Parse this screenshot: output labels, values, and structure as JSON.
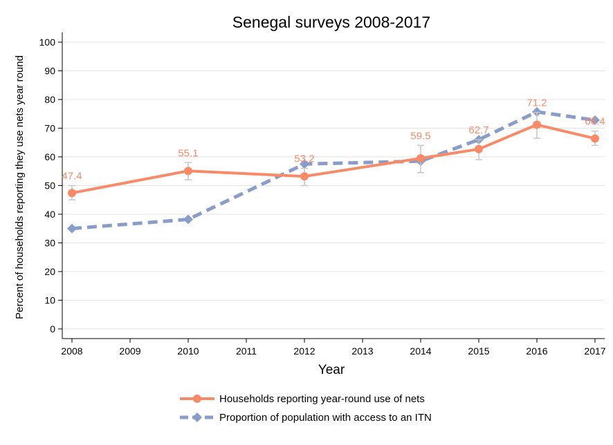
{
  "chart_data": {
    "type": "line",
    "title": "Senegal surveys 2008-2017",
    "xlabel": "Year",
    "ylabel": "Percent of households reporting they use nets year round",
    "x_ticks": [
      2008,
      2009,
      2010,
      2011,
      2012,
      2013,
      2014,
      2015,
      2016,
      2017
    ],
    "xlim": [
      2008,
      2017
    ],
    "y_ticks": [
      0,
      10,
      20,
      30,
      40,
      50,
      60,
      70,
      80,
      90,
      100
    ],
    "ylim": [
      0,
      100
    ],
    "grid": true,
    "legend_position": "bottom",
    "series": [
      {
        "name": "Households reporting year-round use of nets",
        "color": "#f98a67",
        "style": "solid",
        "marker": "circle",
        "x": [
          2008,
          2010,
          2012,
          2014,
          2015,
          2016,
          2017
        ],
        "y": [
          47.4,
          55.1,
          53.2,
          59.5,
          62.7,
          71.2,
          66.4
        ],
        "labels": [
          "47.4",
          "55.1",
          "53.2",
          "59.5",
          "62.7",
          "71.2",
          "66.4"
        ],
        "ci_low": [
          45.0,
          52.0,
          50.0,
          54.5,
          59.0,
          66.5,
          64.0
        ],
        "ci_high": [
          50.0,
          58.0,
          56.0,
          64.0,
          66.0,
          75.5,
          69.0
        ]
      },
      {
        "name": "Proportion of population with access to an ITN",
        "color": "#8a9cc8",
        "style": "dashed",
        "marker": "diamond",
        "x": [
          2008,
          2010,
          2012,
          2014,
          2015,
          2016,
          2017
        ],
        "y": [
          35.0,
          38.2,
          57.5,
          58.5,
          66.0,
          75.7,
          72.8
        ]
      }
    ]
  }
}
